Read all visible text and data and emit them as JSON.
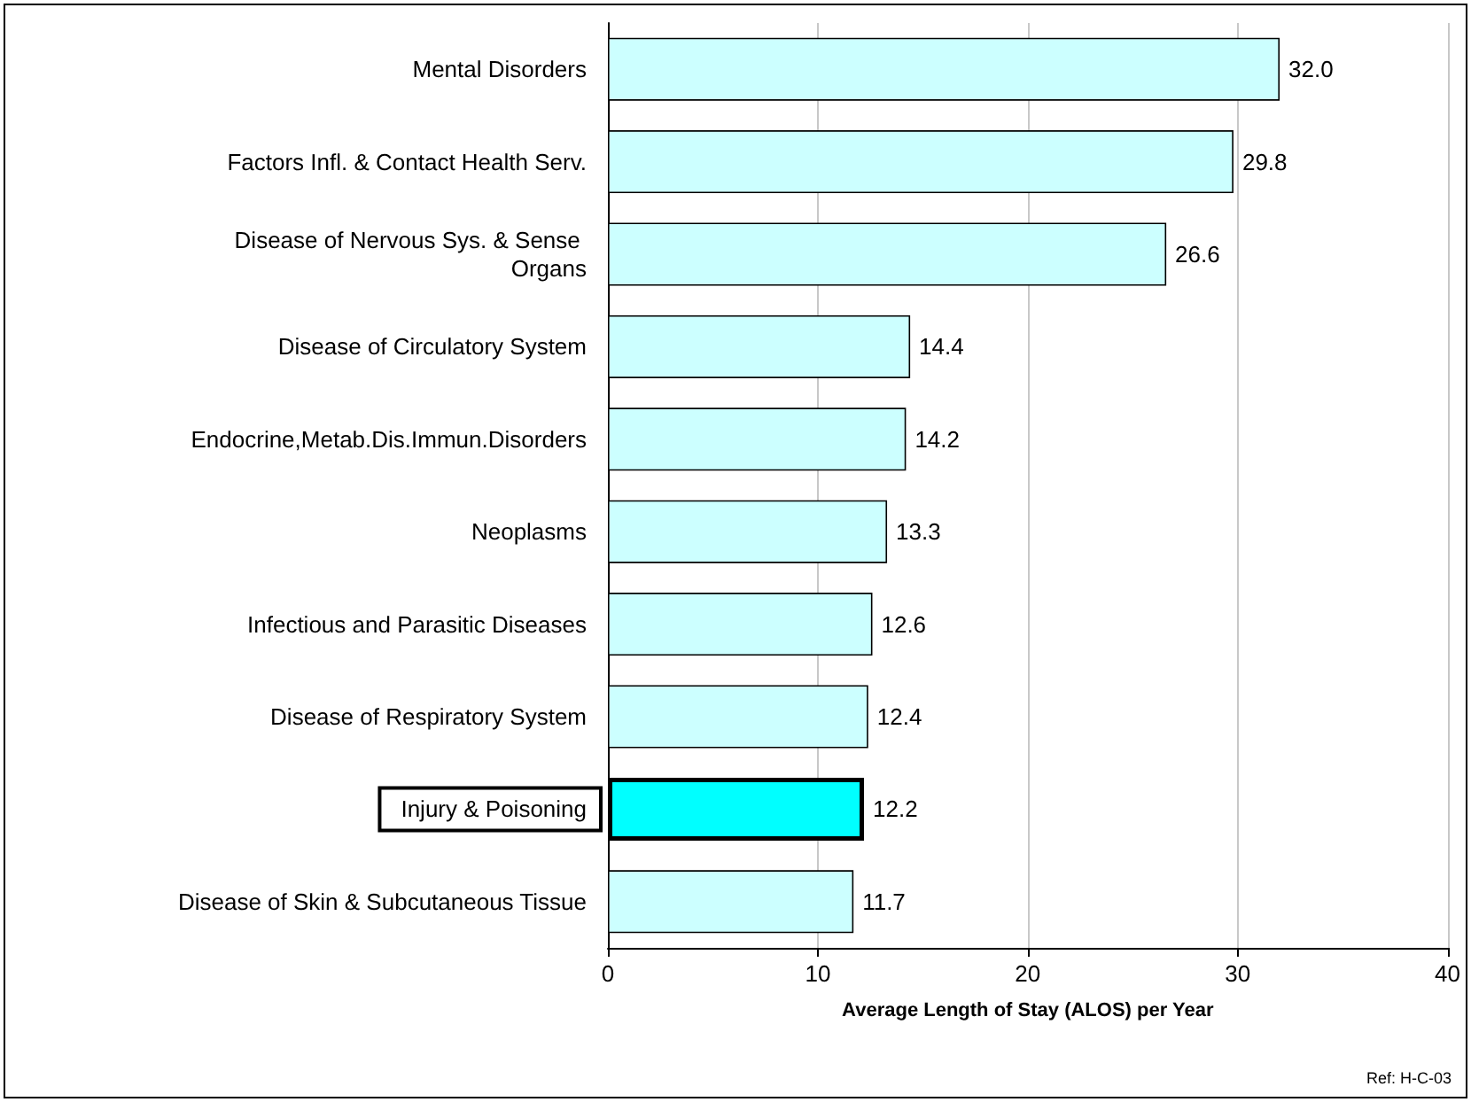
{
  "chart_data": {
    "type": "bar",
    "orientation": "horizontal",
    "categories": [
      "Mental Disorders",
      "Factors Infl. & Contact Health Serv.",
      "Disease of Nervous Sys. & Sense Organs",
      "Disease of Circulatory System",
      "Endocrine,Metab.Dis.Immun.Disorders",
      "Neoplasms",
      "Infectious and Parasitic Diseases",
      "Disease of Respiratory System",
      "Injury & Poisoning",
      "Disease of Skin & Subcutaneous Tissue"
    ],
    "values": [
      32.0,
      29.8,
      26.6,
      14.4,
      14.2,
      13.3,
      12.6,
      12.4,
      12.2,
      11.7
    ],
    "colors": [
      "#ccffff",
      "#ccffff",
      "#ccffff",
      "#ccffff",
      "#ccffff",
      "#ccffff",
      "#ccffff",
      "#ccffff",
      "#00ffff",
      "#ccffff"
    ],
    "xlim": [
      0,
      40
    ],
    "xticks": [
      0,
      10,
      20,
      30,
      40
    ],
    "grid": "x",
    "value_labels": [
      "32.0",
      "29.8",
      "26.6",
      "14.4",
      "14.2",
      "13.3",
      "12.6",
      "12.4",
      "12.2",
      "11.7"
    ],
    "xlabel": "Average Length of Stay (ALOS) per Year",
    "annotations": [
      "Ref: H-C-03"
    ]
  }
}
